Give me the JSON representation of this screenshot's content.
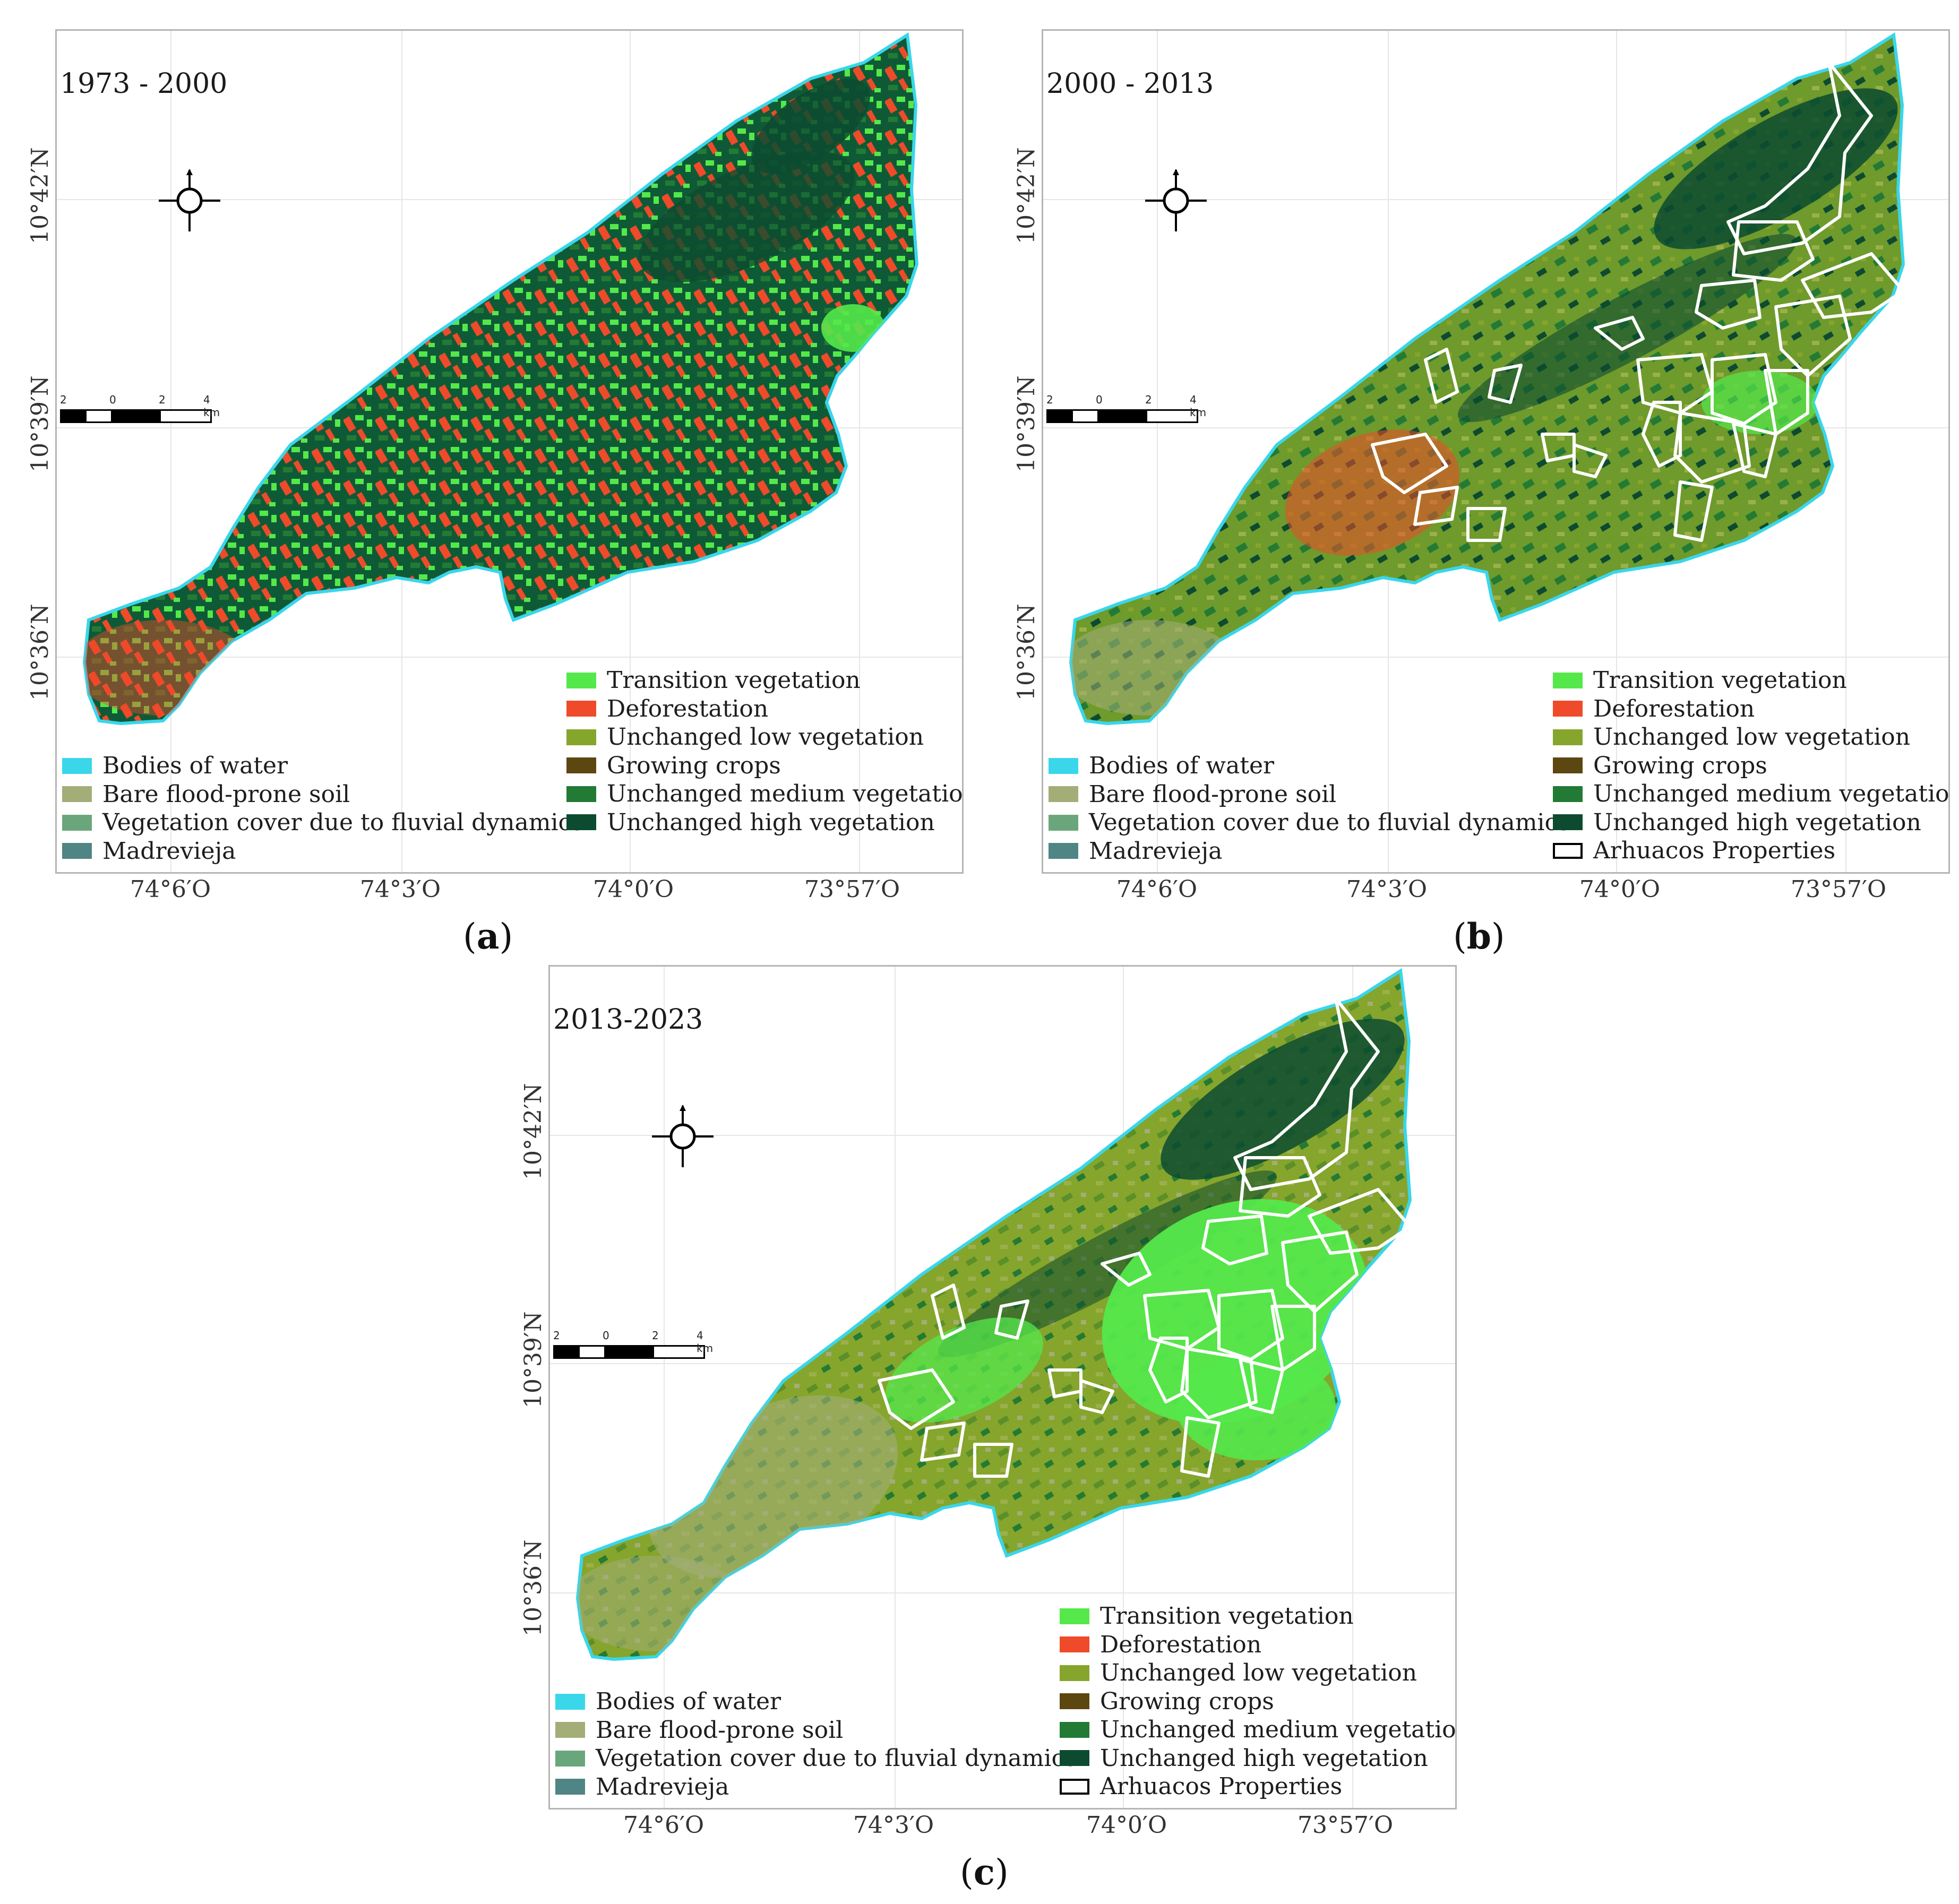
{
  "figure": {
    "panels": [
      {
        "id": "a",
        "period": "1973 - 2000",
        "caption_letter": "a",
        "scale": {
          "ticks": [
            "2",
            "0",
            "2",
            "4 km"
          ]
        },
        "lat_labels": [
          "10°42′N",
          "10°39′N",
          "10°36′N"
        ],
        "lon_labels": [
          "74°6′O",
          "74°3′O",
          "74°0′O",
          "73°57′O"
        ],
        "legend_left": [
          {
            "label": "Bodies of water",
            "color": "#3ad6ea"
          },
          {
            "label": "Bare flood-prone soil",
            "color": "#a3ad78"
          },
          {
            "label": "Vegetation cover due to fluvial dynamics",
            "color": "#6aa67c"
          },
          {
            "label": "Madrevieja",
            "color": "#4f8584"
          }
        ],
        "legend_right": [
          {
            "label": "Transition vegetation",
            "color": "#54e84b"
          },
          {
            "label": "Deforestation",
            "color": "#ef4a2a"
          },
          {
            "label": "Unchanged low vegetation",
            "color": "#86a52c"
          },
          {
            "label": "Growing crops",
            "color": "#5c4711"
          },
          {
            "label": "Unchanged medium vegetation",
            "color": "#237a35"
          },
          {
            "label": "Unchanged high vegetation",
            "color": "#0c4b30"
          }
        ],
        "has_properties": false,
        "properties_label": ""
      },
      {
        "id": "b",
        "period": "2000 - 2013",
        "caption_letter": "b",
        "scale": {
          "ticks": [
            "2",
            "0",
            "2",
            "4 km"
          ]
        },
        "lat_labels": [
          "10°42′N",
          "10°39′N",
          "10°36′N"
        ],
        "lon_labels": [
          "74°6′O",
          "74°3′O",
          "74°0′O",
          "73°57′O"
        ],
        "legend_left": [
          {
            "label": "Bodies of water",
            "color": "#3ad6ea"
          },
          {
            "label": "Bare flood-prone soil",
            "color": "#a3ad78"
          },
          {
            "label": "Vegetation cover due to fluvial dynamics",
            "color": "#6aa67c"
          },
          {
            "label": "Madrevieja",
            "color": "#4f8584"
          }
        ],
        "legend_right": [
          {
            "label": "Transition vegetation",
            "color": "#54e84b"
          },
          {
            "label": "Deforestation",
            "color": "#ef4a2a"
          },
          {
            "label": "Unchanged low vegetation",
            "color": "#86a52c"
          },
          {
            "label": "Growing crops",
            "color": "#5c4711"
          },
          {
            "label": "Unchanged medium vegetation",
            "color": "#237a35"
          },
          {
            "label": "Unchanged high vegetation",
            "color": "#0c4b30"
          }
        ],
        "has_properties": true,
        "properties_label": "Arhuacos Properties"
      },
      {
        "id": "c",
        "period": "2013-2023",
        "caption_letter": "c",
        "scale": {
          "ticks": [
            "2",
            "0",
            "2",
            "4 km"
          ]
        },
        "lat_labels": [
          "10°42′N",
          "10°39′N",
          "10°36′N"
        ],
        "lon_labels": [
          "74°6′O",
          "74°3′O",
          "74°0′O",
          "73°57′O"
        ],
        "legend_left": [
          {
            "label": "Bodies of water",
            "color": "#3ad6ea"
          },
          {
            "label": "Bare flood-prone soil",
            "color": "#a3ad78"
          },
          {
            "label": "Vegetation cover due to fluvial dynamics",
            "color": "#6aa67c"
          },
          {
            "label": "Madrevieja",
            "color": "#4f8584"
          }
        ],
        "legend_right": [
          {
            "label": "Transition vegetation",
            "color": "#54e84b"
          },
          {
            "label": "Deforestation",
            "color": "#ef4a2a"
          },
          {
            "label": "Unchanged low vegetation",
            "color": "#86a52c"
          },
          {
            "label": "Growing crops",
            "color": "#5c4711"
          },
          {
            "label": "Unchanged medium vegetation",
            "color": "#237a35"
          },
          {
            "label": "Unchanged high vegetation",
            "color": "#0c4b30"
          }
        ],
        "has_properties": true,
        "properties_label": "Arhuacos Properties"
      }
    ]
  }
}
